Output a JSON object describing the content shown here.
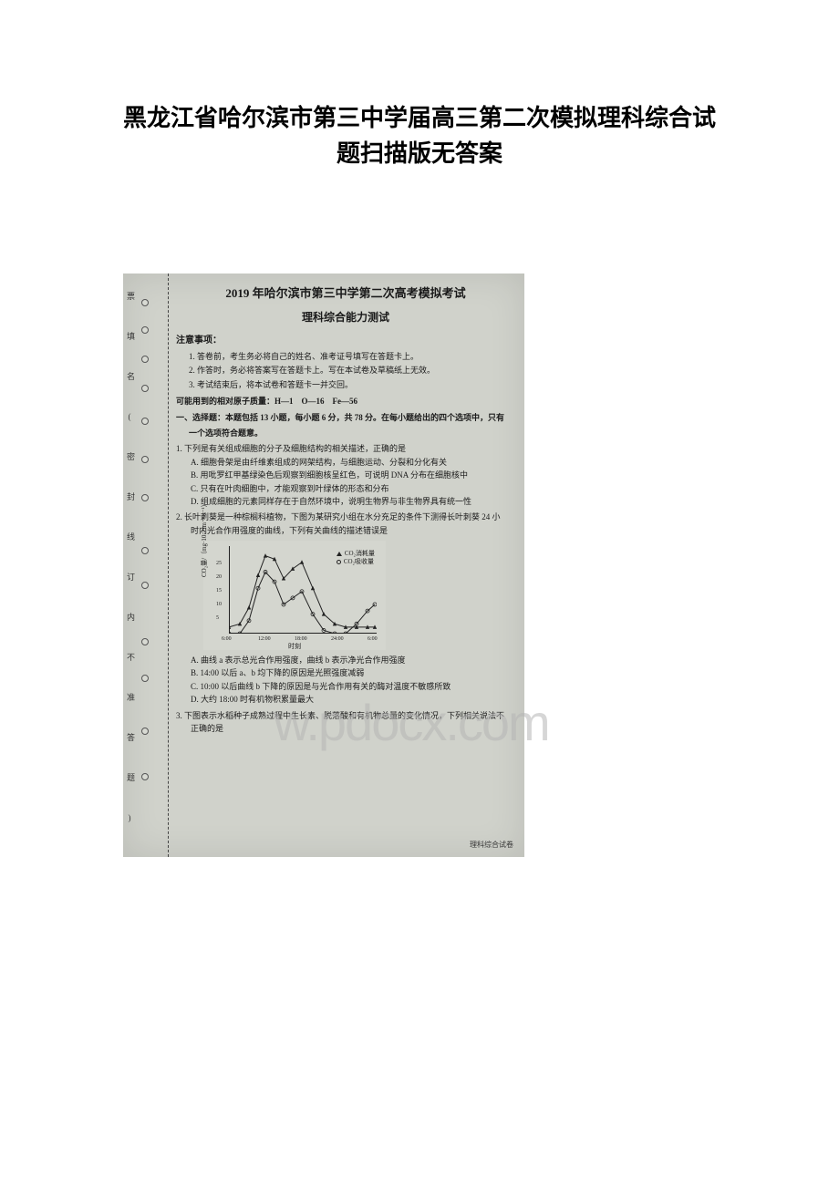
{
  "page": {
    "title_line1": "黑龙江省哈尔滨市第三中学届高三第二次模拟理科综合试",
    "title_line2": "题扫描版无答案"
  },
  "binding": {
    "labels": [
      "票",
      "填",
      "名",
      "(",
      "密",
      "封",
      "线",
      "订",
      "内",
      "不",
      "准",
      "答",
      "题",
      ")"
    ],
    "hole_positions": [
      28,
      58,
      90,
      122,
      158,
      200,
      242,
      300,
      338,
      400,
      440,
      498,
      548
    ]
  },
  "exam": {
    "header": "2019 年哈尔滨市第三中学第二次高考模拟考试",
    "subtitle": "理科综合能力测试",
    "notice_label": "注意事项：",
    "notices": [
      "1. 答卷前，考生务必将自己的姓名、准考证号填写在答题卡上。",
      "2. 作答时，务必将答案写在答题卡上。写在本试卷及草稿纸上无效。",
      "3. 考试结束后，将本试卷和答题卡一并交回。"
    ],
    "atomic": "可能用到的相对原子质量：H—1　O—16　Fe—56",
    "section1": "一、选择题：本题包括 13 小题，每小题 6 分，共 78 分。在每小题给出的四个选项中，只有",
    "section1_cont": "一个选项符合题意。"
  },
  "q1": {
    "stem": "1. 下列是有关组成细胞的分子及细胞结构的相关描述，正确的是",
    "a": "A. 细胞骨架是由纤维素组成的网架结构，与细胞运动、分裂和分化有关",
    "b": "B. 用吡罗红甲基绿染色后观察到细胞核呈红色，可说明 DNA 分布在细胞核中",
    "c": "C. 只有在叶肉细胞中，才能观察到叶绿体的形态和分布",
    "d": "D. 组成细胞的元素同样存在于自然环境中，说明生物界与非生物界具有统一性"
  },
  "q2": {
    "stem1": "2. 长叶刺葵是一种棕榈科植物，下图为某研究小组在水分充足的条件下测得长叶刺葵 24 小",
    "stem2": "时内光合作用强度的曲线，下列有关曲线的描述错误是",
    "a": "A. 曲线 a 表示总光合作用强度，曲线 b 表示净光合作用强度",
    "b": "B. 14:00 以后 a、b 均下降的原因是光照强度减弱",
    "c": "C. 10:00 以后曲线 b 下降的原因是与光合作用有关的酶对温度不敏感所致",
    "d": "D. 大约 18:00 时有机物积累量最大"
  },
  "q3": {
    "stem1": "3. 下图表示水稻种子成熟过程中生长素、脱落酸和有机物总量的变化情况，下列相关说法不",
    "stem2": "正确的是"
  },
  "chart": {
    "type": "line",
    "xlabel": "时刻",
    "ylabel": "CO₂量/（mg·10⁻²·m⁻²·s⁻¹）",
    "x_ticks": [
      "6:00",
      "12:00",
      "18:00",
      "24:00",
      "6:00"
    ],
    "x_tick_positions": [
      0,
      40,
      80,
      120,
      160
    ],
    "y_ticks": [
      "5",
      "10",
      "15",
      "20",
      "25"
    ],
    "y_tick_positions": [
      15,
      30,
      45,
      60,
      75
    ],
    "ylim": [
      0,
      27
    ],
    "xlim": [
      0,
      24
    ],
    "legend": [
      {
        "marker": "triangle",
        "label": "CO₂消耗量"
      },
      {
        "marker": "circle",
        "label": "CO₂吸收量"
      }
    ],
    "series_a": {
      "marker": "triangle",
      "color": "#222222",
      "points": [
        [
          0,
          2
        ],
        [
          12,
          3
        ],
        [
          22,
          8
        ],
        [
          32,
          18
        ],
        [
          40,
          24
        ],
        [
          50,
          23
        ],
        [
          60,
          17
        ],
        [
          70,
          20
        ],
        [
          80,
          22
        ],
        [
          92,
          14
        ],
        [
          104,
          6
        ],
        [
          116,
          3
        ],
        [
          128,
          2
        ],
        [
          140,
          2
        ],
        [
          152,
          2
        ],
        [
          160,
          2
        ]
      ]
    },
    "series_b": {
      "marker": "circle",
      "color": "#222222",
      "points": [
        [
          0,
          0
        ],
        [
          12,
          0
        ],
        [
          22,
          4
        ],
        [
          32,
          14
        ],
        [
          40,
          19
        ],
        [
          50,
          16
        ],
        [
          60,
          9
        ],
        [
          70,
          11
        ],
        [
          80,
          13
        ],
        [
          92,
          6
        ],
        [
          104,
          1
        ],
        [
          116,
          0
        ],
        [
          128,
          0
        ],
        [
          140,
          3
        ],
        [
          152,
          7
        ],
        [
          160,
          9
        ]
      ]
    },
    "grid_color": "#d4d6cf",
    "background_color": "#d4d6cf",
    "line_width": 1
  },
  "footer": "理科综合试卷",
  "watermark": "w.pdocx.com",
  "colors": {
    "page_bg": "#ffffff",
    "scan_bg": "#d0d2cb",
    "text": "#1a1a1a",
    "axis": "#222222",
    "watermark": "rgba(180,180,180,0.55)"
  }
}
